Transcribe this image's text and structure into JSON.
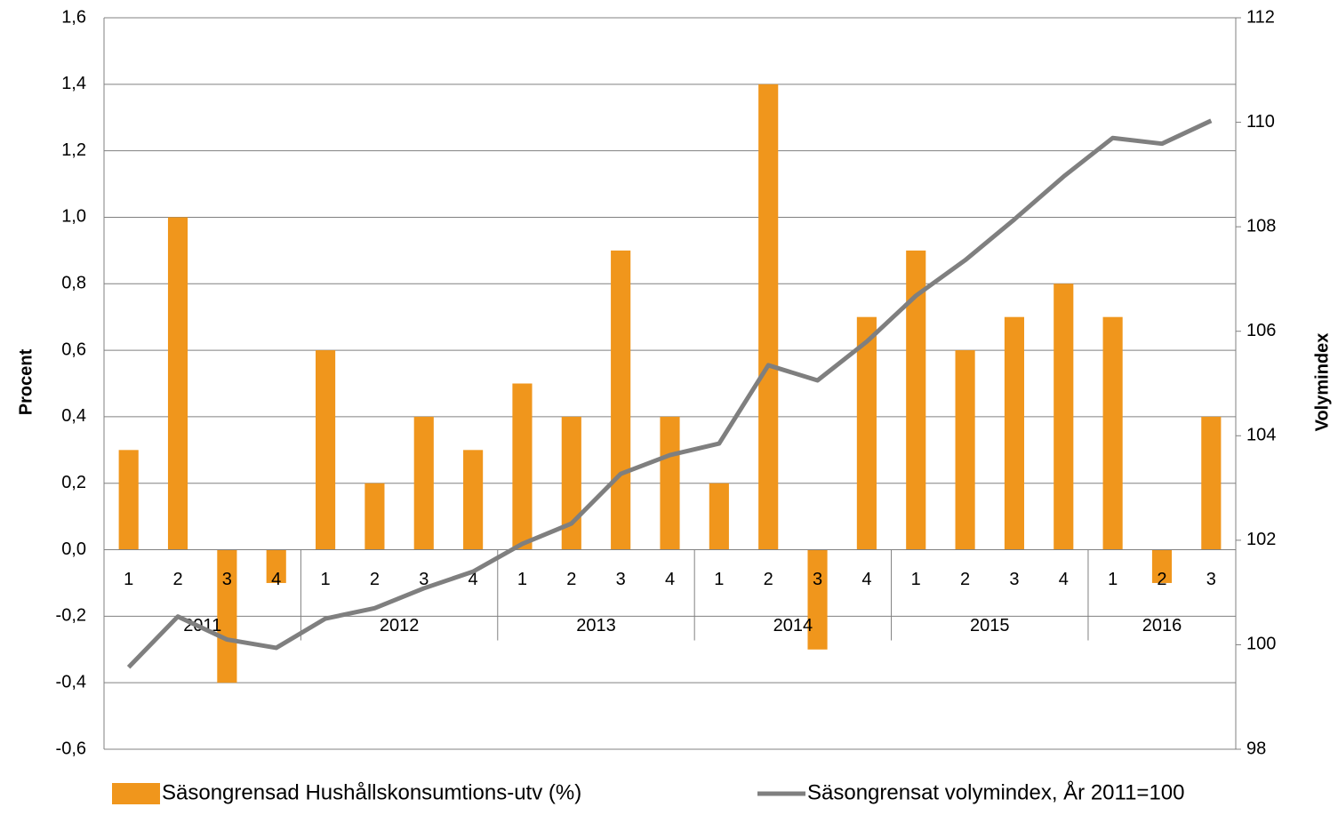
{
  "chart_data": {
    "type": "bar",
    "ylabel": "Procent",
    "y2label": "Volymindex",
    "categories": [
      "1",
      "2",
      "3",
      "4",
      "1",
      "2",
      "3",
      "4",
      "1",
      "2",
      "3",
      "4",
      "1",
      "2",
      "3",
      "4",
      "1",
      "2",
      "3",
      "4",
      "1",
      "2",
      "3"
    ],
    "years": [
      "2011",
      "2012",
      "2013",
      "2014",
      "2015",
      "2016"
    ],
    "series": [
      {
        "name": "Säsongrensad Hushållskonsumtions-utv (%)",
        "type": "bar",
        "color": "#f0961c",
        "values": [
          0.3,
          1.0,
          -0.4,
          -0.1,
          0.6,
          0.2,
          0.4,
          0.3,
          0.5,
          0.4,
          0.9,
          0.4,
          0.2,
          1.4,
          -0.3,
          0.7,
          0.9,
          0.6,
          0.7,
          0.8,
          0.7,
          -0.1,
          0.4
        ]
      },
      {
        "name": "Säsongrensat volymindex, År 2011=100",
        "type": "line",
        "color": "#7f7f7f",
        "axis": "y2",
        "values": [
          99.57,
          100.54,
          100.1,
          99.94,
          100.5,
          100.7,
          101.08,
          101.4,
          101.93,
          102.32,
          103.27,
          103.63,
          103.85,
          105.35,
          105.06,
          105.8,
          106.68,
          107.36,
          108.14,
          108.96,
          109.7,
          109.59,
          110.03
        ]
      }
    ],
    "ylim": [
      -0.6,
      1.6
    ],
    "yticks": [
      {
        "value": -0.6,
        "label": "-0,6"
      },
      {
        "value": -0.4,
        "label": "-0,4"
      },
      {
        "value": -0.2,
        "label": "-0,2"
      },
      {
        "value": 0,
        "label": "0,0"
      },
      {
        "value": 0.2,
        "label": "0,2"
      },
      {
        "value": 0.4,
        "label": "0,4"
      },
      {
        "value": 0.6,
        "label": "0,6"
      },
      {
        "value": 0.8,
        "label": "0,8"
      },
      {
        "value": 1.0,
        "label": "1,0"
      },
      {
        "value": 1.2,
        "label": "1,2"
      },
      {
        "value": 1.4,
        "label": "1,4"
      },
      {
        "value": 1.6,
        "label": "1,6"
      }
    ],
    "y2lim": [
      98,
      112
    ],
    "y2ticks": [
      98,
      100,
      102,
      104,
      106,
      108,
      110,
      112
    ],
    "grid": true,
    "legend": "bottom"
  }
}
